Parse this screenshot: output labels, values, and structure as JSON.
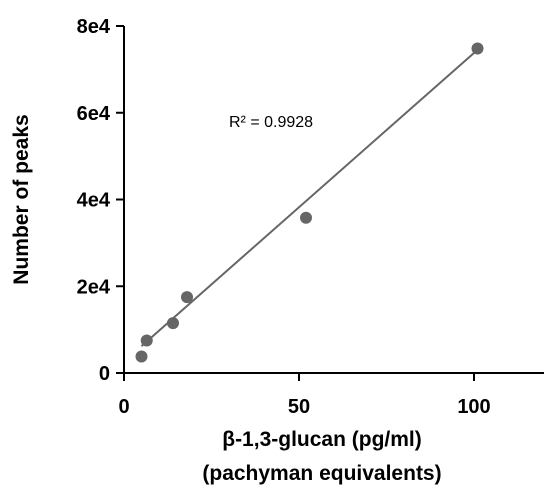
{
  "chart_data": {
    "type": "scatter",
    "title": "",
    "xlabel": "β-1,3-glucan (pg/ml)",
    "xlabel_line2": "(pachyman equivalents)",
    "ylabel": "Number of peaks",
    "xlim": [
      0,
      120
    ],
    "ylim": [
      0,
      80000
    ],
    "xticks": [
      0,
      50,
      100
    ],
    "xtick_labels": [
      "0",
      "50",
      "100"
    ],
    "yticks": [
      0,
      20000,
      40000,
      60000,
      80000
    ],
    "ytick_labels": [
      "0",
      "2e4",
      "4e4",
      "6e4",
      "8e4"
    ],
    "grid": false,
    "legend": "none",
    "series": [
      {
        "points": [
          {
            "x": 5,
            "y": 3800
          },
          {
            "x": 6.5,
            "y": 7500
          },
          {
            "x": 14,
            "y": 11500
          },
          {
            "x": 18,
            "y": 17500
          },
          {
            "x": 52,
            "y": 35800
          },
          {
            "x": 101,
            "y": 74800
          }
        ],
        "color": "#666666"
      }
    ],
    "trendline": {
      "x_range": [
        5,
        101
      ],
      "y_range": [
        6200,
        74500
      ],
      "color": "#666666",
      "label": "R² = 0.9928"
    }
  }
}
